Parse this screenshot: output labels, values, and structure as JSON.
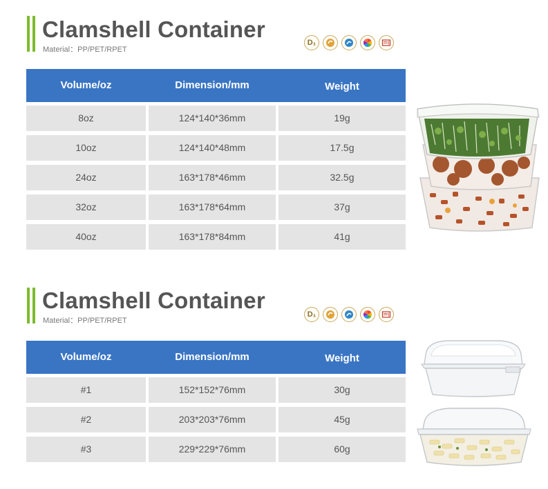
{
  "sections": [
    {
      "title": "Clamshell Container",
      "material": "Material：PP/PET/RPET",
      "headers": [
        "Volume/oz",
        "Dimension/mm",
        "Weight"
      ],
      "rows": [
        [
          "8oz",
          "124*140*36mm",
          "19g"
        ],
        [
          "10oz",
          "124*140*48mm",
          "17.5g"
        ],
        [
          "24oz",
          "163*178*46mm",
          "32.5g"
        ],
        [
          "32oz",
          "163*178*64mm",
          "37g"
        ],
        [
          "40oz",
          "163*178*84mm",
          "41g"
        ]
      ]
    },
    {
      "title": "Clamshell Container",
      "material": "Material：PP/PET/RPET",
      "headers": [
        "Volume/oz",
        "Dimension/mm",
        "Weight"
      ],
      "rows": [
        [
          "#1",
          "152*152*76mm",
          "30g"
        ],
        [
          "#2",
          "203*203*76mm",
          "45g"
        ],
        [
          "#3",
          "229*229*76mm",
          "60g"
        ]
      ]
    }
  ],
  "icons": [
    "dishwasher-safe-icon",
    "microwave-safe-icon",
    "recyclable-icon",
    "color-options-icon",
    "microwave-icon"
  ],
  "icon_texts": {
    "dishwasher": "D₁"
  },
  "colors": {
    "accent_bar": "#7dbb2e",
    "header_bg": "#3a75c4",
    "cell_bg": "#e4e4e4",
    "title": "#555555"
  }
}
